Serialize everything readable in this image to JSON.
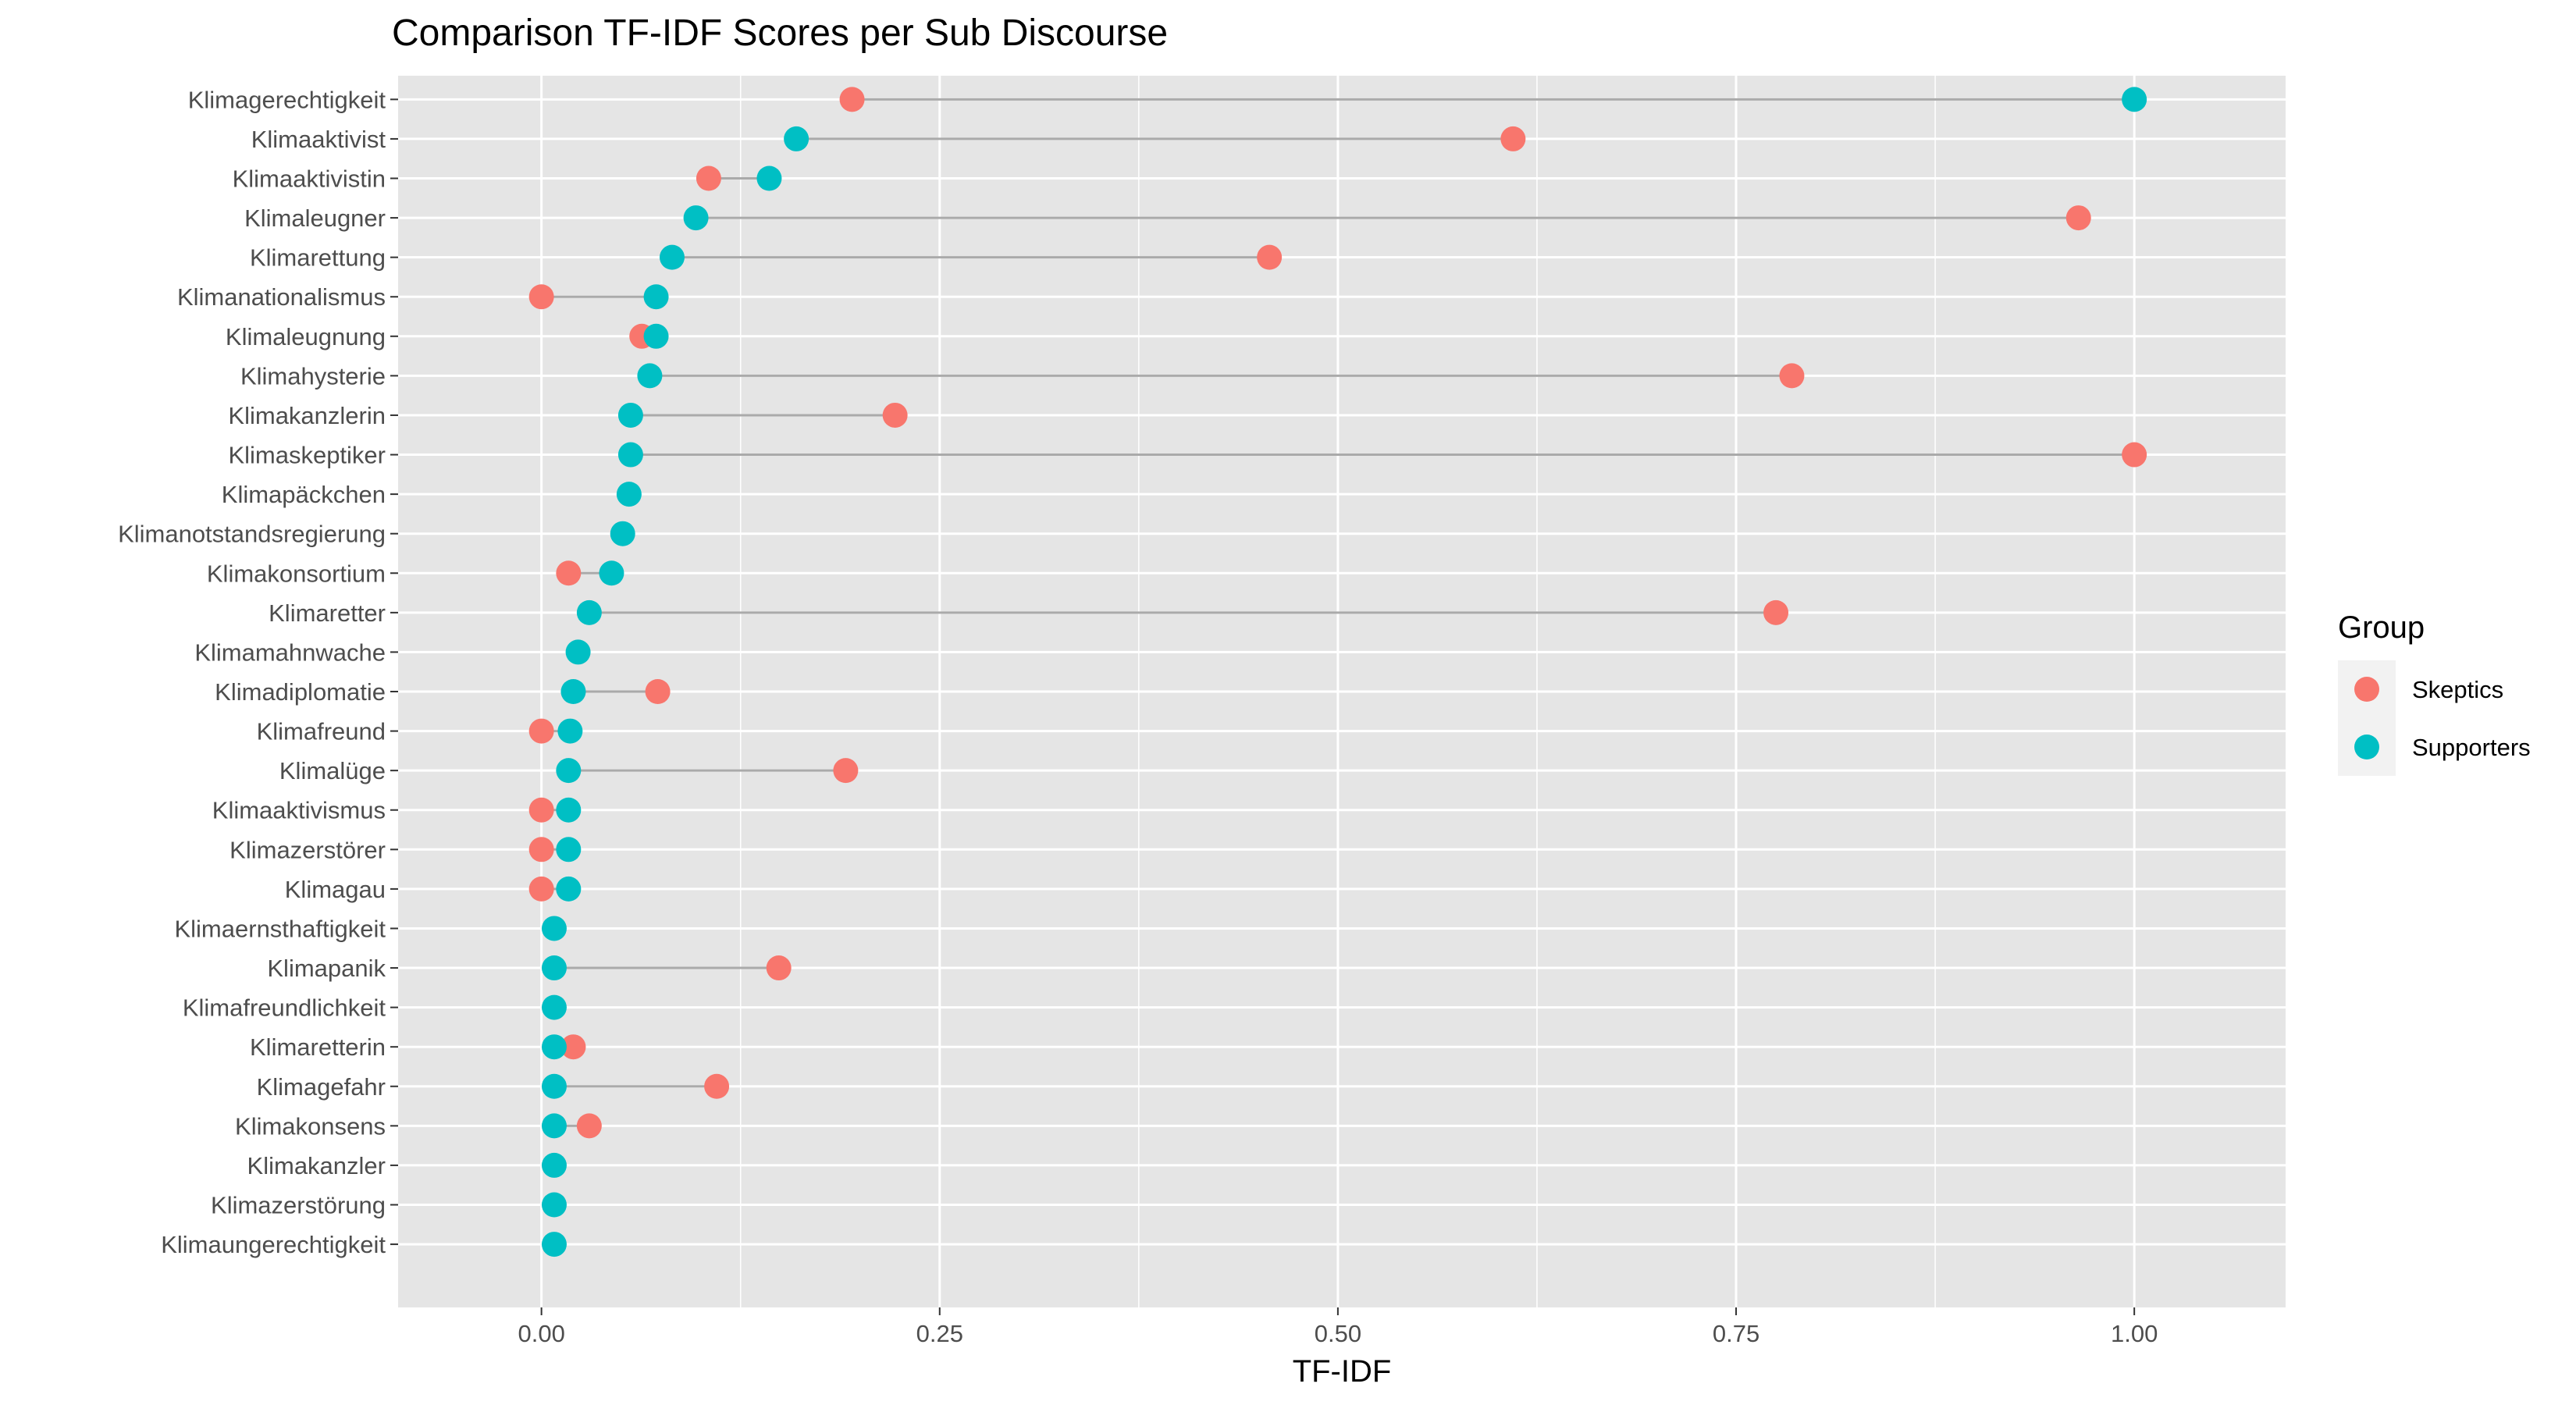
{
  "chart_data": {
    "type": "scatter",
    "title": "Comparison TF-IDF Scores per Sub Discourse",
    "xlabel": "TF-IDF",
    "ylabel": "",
    "xlim": [
      -0.09,
      1.095
    ],
    "x_ticks": [
      0.0,
      0.25,
      0.5,
      0.75,
      1.0
    ],
    "x_tick_labels": [
      "0.00",
      "0.25",
      "0.50",
      "0.75",
      "1.00"
    ],
    "grid": true,
    "legend": {
      "title": "Group",
      "position": "right",
      "entries": [
        {
          "label": "Skeptics",
          "color": "#F8766D"
        },
        {
          "label": "Supporters",
          "color": "#00BFC4"
        }
      ]
    },
    "categories": [
      "Klimagerechtigkeit",
      "Klimaaktivist",
      "Klimaaktivistin",
      "Klimaleugner",
      "Klimarettung",
      "Klimanationalismus",
      "Klimaleugnung",
      "Klimahysterie",
      "Klimakanzlerin",
      "Klimaskeptiker",
      "Klimapäckchen",
      "Klimanotstandsregierung",
      "Klimakonsortium",
      "Klimaretter",
      "Klimamahnwache",
      "Klimadiplomatie",
      "Klimafreund",
      "Klimalüge",
      "Klimaaktivismus",
      "Klimazerstörer",
      "Klimagau",
      "Klimaernsthaftigkeit",
      "Klimapanik",
      "Klimafreundlichkeit",
      "Klimaretterin",
      "Klimagefahr",
      "Klimakonsens",
      "Klimakanzler",
      "Klimazerstörung",
      "Klimaungerechtigkeit"
    ],
    "series": [
      {
        "name": "Skeptics",
        "color": "#F8766D",
        "values": [
          0.195,
          0.61,
          0.105,
          0.965,
          0.457,
          0.0,
          0.063,
          0.785,
          0.222,
          1.0,
          null,
          null,
          0.017,
          0.775,
          null,
          0.073,
          0.0,
          0.191,
          0.0,
          0.0,
          0.0,
          null,
          0.149,
          null,
          0.02,
          0.11,
          0.03,
          null,
          null,
          null
        ]
      },
      {
        "name": "Supporters",
        "color": "#00BFC4",
        "values": [
          1.0,
          0.16,
          0.143,
          0.097,
          0.082,
          0.072,
          0.072,
          0.068,
          0.056,
          0.056,
          0.055,
          0.051,
          0.044,
          0.03,
          0.023,
          0.02,
          0.018,
          0.017,
          0.017,
          0.017,
          0.017,
          0.008,
          0.008,
          0.008,
          0.008,
          0.008,
          0.008,
          0.008,
          0.008,
          0.008
        ]
      }
    ]
  },
  "colors": {
    "panel_background": "#E5E5E5",
    "grid_line": "#FFFFFF",
    "segment": "#AAAAAA",
    "axis_text": "#4D4D4D",
    "tick_mark": "#333333",
    "legend_key_background": "#F2F2F2"
  }
}
